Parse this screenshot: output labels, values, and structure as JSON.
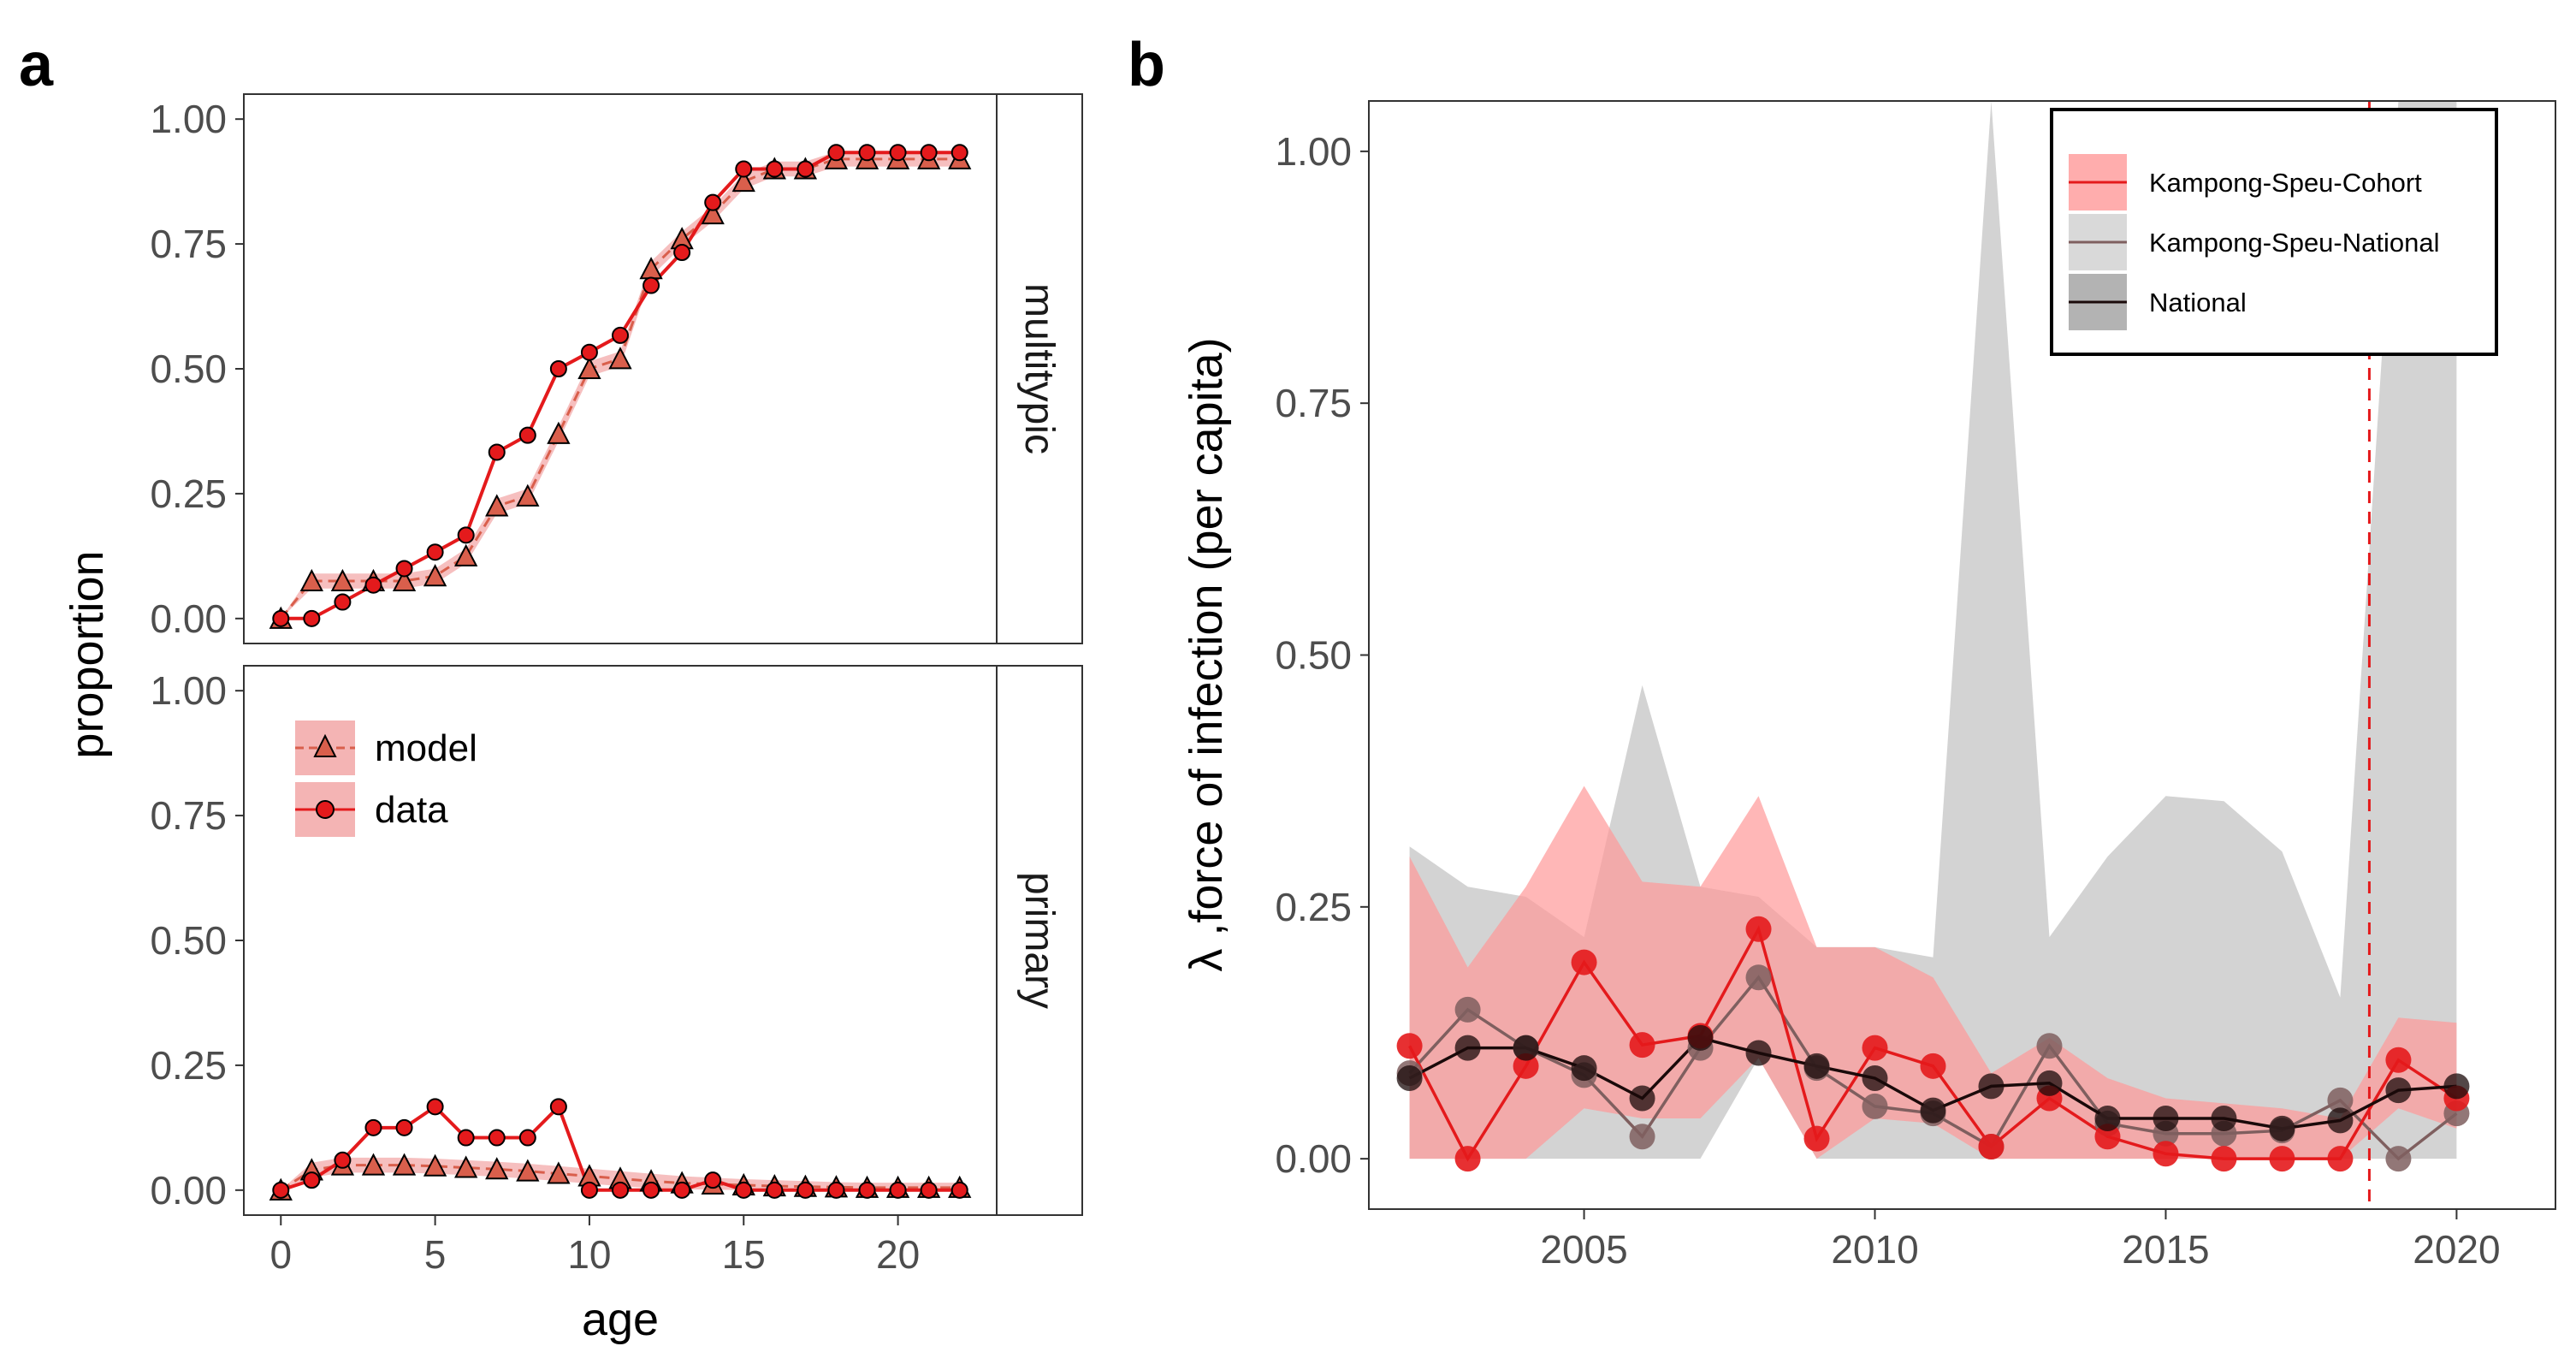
{
  "panel_a": {
    "letter": "a",
    "xlabel": "age",
    "ylabel": "proportion",
    "xticks": [
      "0",
      "5",
      "10",
      "15",
      "20"
    ],
    "yticks": [
      "0.00",
      "0.25",
      "0.50",
      "0.75",
      "1.00"
    ],
    "facets": [
      "multitypic",
      "primary"
    ],
    "legend": [
      "model",
      "data"
    ]
  },
  "panel_b": {
    "letter": "b",
    "ylabel": "λ ,force of infection (per capita)",
    "xticks": [
      "2005",
      "2010",
      "2015",
      "2020"
    ],
    "yticks": [
      "0.00",
      "0.25",
      "0.50",
      "0.75",
      "1.00"
    ],
    "legend": [
      "Kampong-Speu-Cohort",
      "Kampong-Speu-National",
      "National"
    ]
  },
  "colors": {
    "cohort": "#e41a1c",
    "cohort_ribbon": "#ff9999",
    "kpnational": "#7f5f5f",
    "national": "#1a0a0a",
    "national_ribbon": "#b3b3b3",
    "model_fill": "#d95f4c",
    "vline": "#e41a1c"
  },
  "chart_data": [
    {
      "type": "line",
      "title": "",
      "facet": "multitypic",
      "xlabel": "age",
      "ylabel": "proportion",
      "xlim": [
        -1.2,
        23.2
      ],
      "ylim": [
        -0.05,
        1.05
      ],
      "x": [
        0,
        1,
        2,
        3,
        4,
        5,
        6,
        7,
        8,
        9,
        10,
        11,
        12,
        13,
        14,
        15,
        16,
        17,
        18,
        19,
        20,
        21,
        22
      ],
      "series": [
        {
          "name": "model",
          "marker": "triangle",
          "values": [
            0.0,
            0.075,
            0.075,
            0.075,
            0.075,
            0.085,
            0.125,
            0.225,
            0.245,
            0.37,
            0.5,
            0.52,
            0.7,
            0.76,
            0.81,
            0.875,
            0.9,
            0.9,
            0.92,
            0.92,
            0.92,
            0.92,
            0.92
          ],
          "lower": [
            0.0,
            0.06,
            0.06,
            0.06,
            0.06,
            0.07,
            0.11,
            0.21,
            0.23,
            0.355,
            0.485,
            0.505,
            0.685,
            0.745,
            0.795,
            0.86,
            0.885,
            0.885,
            0.905,
            0.905,
            0.905,
            0.905,
            0.905
          ],
          "upper": [
            0.0,
            0.09,
            0.09,
            0.09,
            0.09,
            0.1,
            0.14,
            0.24,
            0.26,
            0.385,
            0.515,
            0.535,
            0.715,
            0.775,
            0.825,
            0.89,
            0.915,
            0.915,
            0.935,
            0.935,
            0.935,
            0.935,
            0.935
          ]
        },
        {
          "name": "data",
          "marker": "circle",
          "values": [
            0.0,
            0.0,
            0.033,
            0.067,
            0.1,
            0.133,
            0.167,
            0.333,
            0.367,
            0.5,
            0.533,
            0.567,
            0.667,
            0.733,
            0.833,
            0.9,
            0.9,
            0.9,
            0.933,
            0.933,
            0.933,
            0.933,
            0.933
          ]
        }
      ]
    },
    {
      "type": "line",
      "title": "",
      "facet": "primary",
      "xlabel": "age",
      "ylabel": "proportion",
      "xlim": [
        -1.2,
        23.2
      ],
      "ylim": [
        -0.05,
        1.05
      ],
      "x": [
        0,
        1,
        2,
        3,
        4,
        5,
        6,
        7,
        8,
        9,
        10,
        11,
        12,
        13,
        14,
        15,
        16,
        17,
        18,
        19,
        20,
        21,
        22
      ],
      "series": [
        {
          "name": "model",
          "marker": "triangle",
          "values": [
            0.0,
            0.04,
            0.05,
            0.05,
            0.05,
            0.048,
            0.045,
            0.042,
            0.038,
            0.033,
            0.028,
            0.023,
            0.018,
            0.014,
            0.012,
            0.01,
            0.008,
            0.007,
            0.006,
            0.005,
            0.005,
            0.005,
            0.005
          ],
          "lower": [
            0.0,
            0.025,
            0.035,
            0.035,
            0.035,
            0.033,
            0.03,
            0.027,
            0.023,
            0.018,
            0.013,
            0.008,
            0.004,
            0.002,
            0.001,
            0.0,
            0.0,
            0.0,
            0.0,
            0.0,
            0.0,
            0.0,
            0.0
          ],
          "upper": [
            0.0,
            0.055,
            0.065,
            0.065,
            0.065,
            0.063,
            0.06,
            0.057,
            0.053,
            0.048,
            0.043,
            0.038,
            0.033,
            0.028,
            0.025,
            0.022,
            0.02,
            0.018,
            0.016,
            0.015,
            0.015,
            0.015,
            0.015
          ]
        },
        {
          "name": "data",
          "marker": "circle",
          "values": [
            0.0,
            0.02,
            0.06,
            0.125,
            0.125,
            0.167,
            0.105,
            0.105,
            0.105,
            0.167,
            0.0,
            0.0,
            0.0,
            0.0,
            0.02,
            0.0,
            0.0,
            0.0,
            0.0,
            0.0,
            0.0,
            0.0,
            0.0
          ]
        }
      ]
    },
    {
      "type": "line",
      "title": "",
      "xlabel": "",
      "ylabel": "λ ,force of infection (per capita)",
      "xlim": [
        2001.3,
        2021.7
      ],
      "ylim": [
        -0.05,
        1.05
      ],
      "x": [
        2002,
        2003,
        2004,
        2005,
        2006,
        2007,
        2008,
        2009,
        2010,
        2011,
        2012,
        2013,
        2014,
        2015,
        2016,
        2017,
        2018,
        2019,
        2020
      ],
      "vline": 2018.5,
      "series": [
        {
          "name": "Kampong-Speu-Cohort",
          "values": [
            0.112,
            0.0,
            0.092,
            0.195,
            0.113,
            0.122,
            0.228,
            0.02,
            0.11,
            0.092,
            0.012,
            0.06,
            0.022,
            0.005,
            0.0,
            0.0,
            0.0,
            0.098,
            0.06
          ],
          "lower": [
            0.0,
            0.0,
            0.0,
            0.05,
            0.04,
            0.04,
            0.1,
            0.0,
            0.04,
            0.035,
            0.0,
            0.0,
            0.0,
            0.0,
            0.0,
            0.0,
            0.0,
            0.05,
            0.03
          ],
          "upper": [
            0.3,
            0.19,
            0.27,
            0.37,
            0.275,
            0.27,
            0.36,
            0.21,
            0.21,
            0.18,
            0.085,
            0.12,
            0.08,
            0.06,
            0.055,
            0.05,
            0.04,
            0.14,
            0.135
          ]
        },
        {
          "name": "Kampong-Speu-National",
          "values": [
            0.085,
            0.148,
            0.11,
            0.083,
            0.022,
            0.11,
            0.18,
            0.09,
            0.052,
            0.045,
            0.012,
            0.112,
            0.035,
            0.025,
            0.025,
            0.028,
            0.058,
            0.0,
            0.045
          ],
          "lower": [
            0.0,
            0.0,
            0.0,
            0.0,
            0.0,
            0.0,
            0.1,
            0.0,
            0.0,
            0.0,
            0.0,
            0.0,
            0.0,
            0.0,
            0.0,
            0.0,
            0.0,
            0.0,
            0.0
          ],
          "upper": [
            0.31,
            0.27,
            0.26,
            0.22,
            0.47,
            0.27,
            0.26,
            0.21,
            0.21,
            0.2,
            1.05,
            0.22,
            0.3,
            0.36,
            0.355,
            0.305,
            0.16,
            1.05,
            1.05
          ]
        },
        {
          "name": "National",
          "values": [
            0.08,
            0.11,
            0.11,
            0.09,
            0.06,
            0.12,
            0.105,
            0.092,
            0.08,
            0.048,
            0.072,
            0.075,
            0.04,
            0.04,
            0.04,
            0.03,
            0.038,
            0.068,
            0.072
          ]
        }
      ]
    }
  ]
}
